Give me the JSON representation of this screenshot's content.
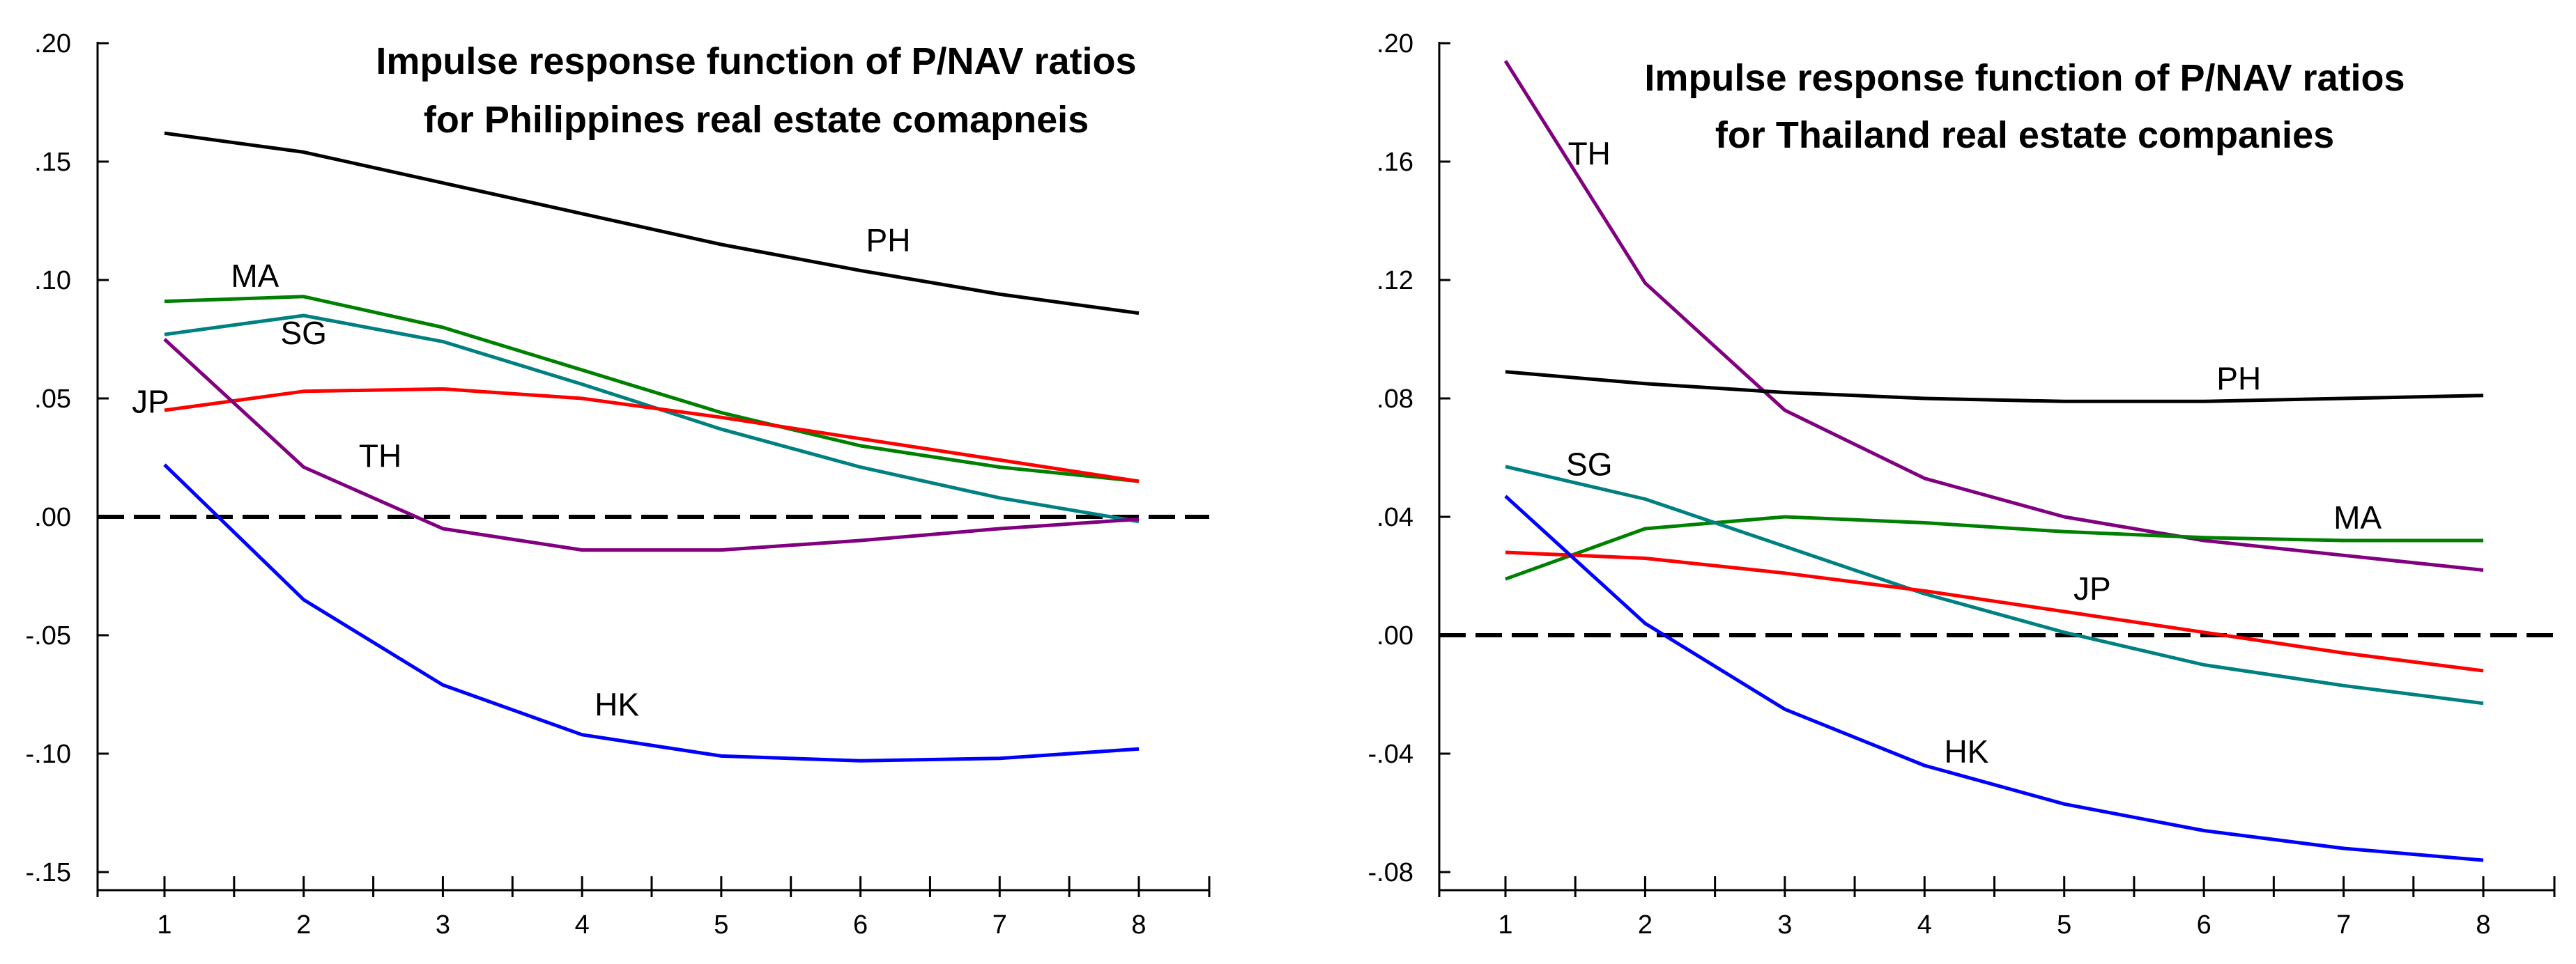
{
  "chart_data": [
    {
      "type": "line",
      "title": [
        "Impulse response function of P/NAV ratios",
        "for Philippines real estate comapneis"
      ],
      "x": [
        1,
        2,
        3,
        4,
        5,
        6,
        7,
        8
      ],
      "ylim": [
        -0.15,
        0.2
      ],
      "yticks": [
        ".20",
        ".15",
        ".10",
        ".05",
        ".00",
        "-.05",
        "-.10",
        "-.15"
      ],
      "ytick_values": [
        0.2,
        0.15,
        0.1,
        0.05,
        0.0,
        -0.05,
        -0.1,
        -0.15
      ],
      "zero_line": "dashed",
      "series": [
        {
          "name": "PH",
          "color": "#000000",
          "values": [
            0.162,
            0.154,
            0.141,
            0.128,
            0.115,
            0.104,
            0.094,
            0.086
          ],
          "label_at": [
            6.2,
            0.112
          ]
        },
        {
          "name": "MA",
          "color": "#008000",
          "values": [
            0.091,
            0.093,
            0.08,
            0.062,
            0.044,
            0.03,
            0.021,
            0.015
          ],
          "label_at": [
            1.65,
            0.097
          ]
        },
        {
          "name": "SG",
          "color": "#008080",
          "values": [
            0.077,
            0.085,
            0.074,
            0.056,
            0.037,
            0.021,
            0.008,
            -0.002
          ],
          "label_at": [
            2.0,
            0.073
          ]
        },
        {
          "name": "JP",
          "color": "#ff0000",
          "values": [
            0.045,
            0.053,
            0.054,
            0.05,
            0.042,
            0.033,
            0.024,
            0.015
          ],
          "label_at": [
            0.9,
            0.044
          ]
        },
        {
          "name": "TH",
          "color": "#800080",
          "values": [
            0.075,
            0.021,
            -0.005,
            -0.014,
            -0.014,
            -0.01,
            -0.005,
            -0.001
          ],
          "label_at": [
            2.55,
            0.021
          ]
        },
        {
          "name": "HK",
          "color": "#0000ff",
          "values": [
            0.022,
            -0.035,
            -0.071,
            -0.092,
            -0.101,
            -0.103,
            -0.102,
            -0.098
          ],
          "label_at": [
            4.25,
            -0.084
          ]
        }
      ]
    },
    {
      "type": "line",
      "title": [
        "Impulse response function of P/NAV ratios",
        "for Thailand real estate companies"
      ],
      "x": [
        1,
        2,
        3,
        4,
        5,
        6,
        7,
        8
      ],
      "ylim": [
        -0.08,
        0.2
      ],
      "yticks": [
        ".20",
        ".16",
        ".12",
        ".08",
        ".04",
        ".00",
        "-.04",
        "-.08"
      ],
      "ytick_values": [
        0.2,
        0.16,
        0.12,
        0.08,
        0.04,
        0.0,
        -0.04,
        -0.08
      ],
      "zero_line": "dashed",
      "series": [
        {
          "name": "TH",
          "color": "#800080",
          "values": [
            0.194,
            0.119,
            0.076,
            0.053,
            0.04,
            0.032,
            0.027,
            0.022
          ],
          "label_at": [
            1.6,
            0.159
          ]
        },
        {
          "name": "PH",
          "color": "#000000",
          "values": [
            0.089,
            0.085,
            0.082,
            0.08,
            0.079,
            0.079,
            0.08,
            0.081
          ],
          "label_at": [
            6.25,
            0.083
          ]
        },
        {
          "name": "MA",
          "color": "#008000",
          "values": [
            0.019,
            0.036,
            0.04,
            0.038,
            0.035,
            0.033,
            0.032,
            0.032
          ],
          "label_at": [
            7.1,
            0.036
          ]
        },
        {
          "name": "SG",
          "color": "#008080",
          "values": [
            0.057,
            0.046,
            0.03,
            0.014,
            0.001,
            -0.01,
            -0.017,
            -0.023
          ],
          "label_at": [
            1.6,
            0.054
          ]
        },
        {
          "name": "JP",
          "color": "#ff0000",
          "values": [
            0.028,
            0.026,
            0.021,
            0.015,
            0.008,
            0.001,
            -0.006,
            -0.012
          ],
          "label_at": [
            5.2,
            0.012
          ]
        },
        {
          "name": "HK",
          "color": "#0000ff",
          "values": [
            0.047,
            0.004,
            -0.025,
            -0.044,
            -0.057,
            -0.066,
            -0.072,
            -0.076
          ],
          "label_at": [
            4.3,
            -0.043
          ]
        }
      ]
    }
  ]
}
